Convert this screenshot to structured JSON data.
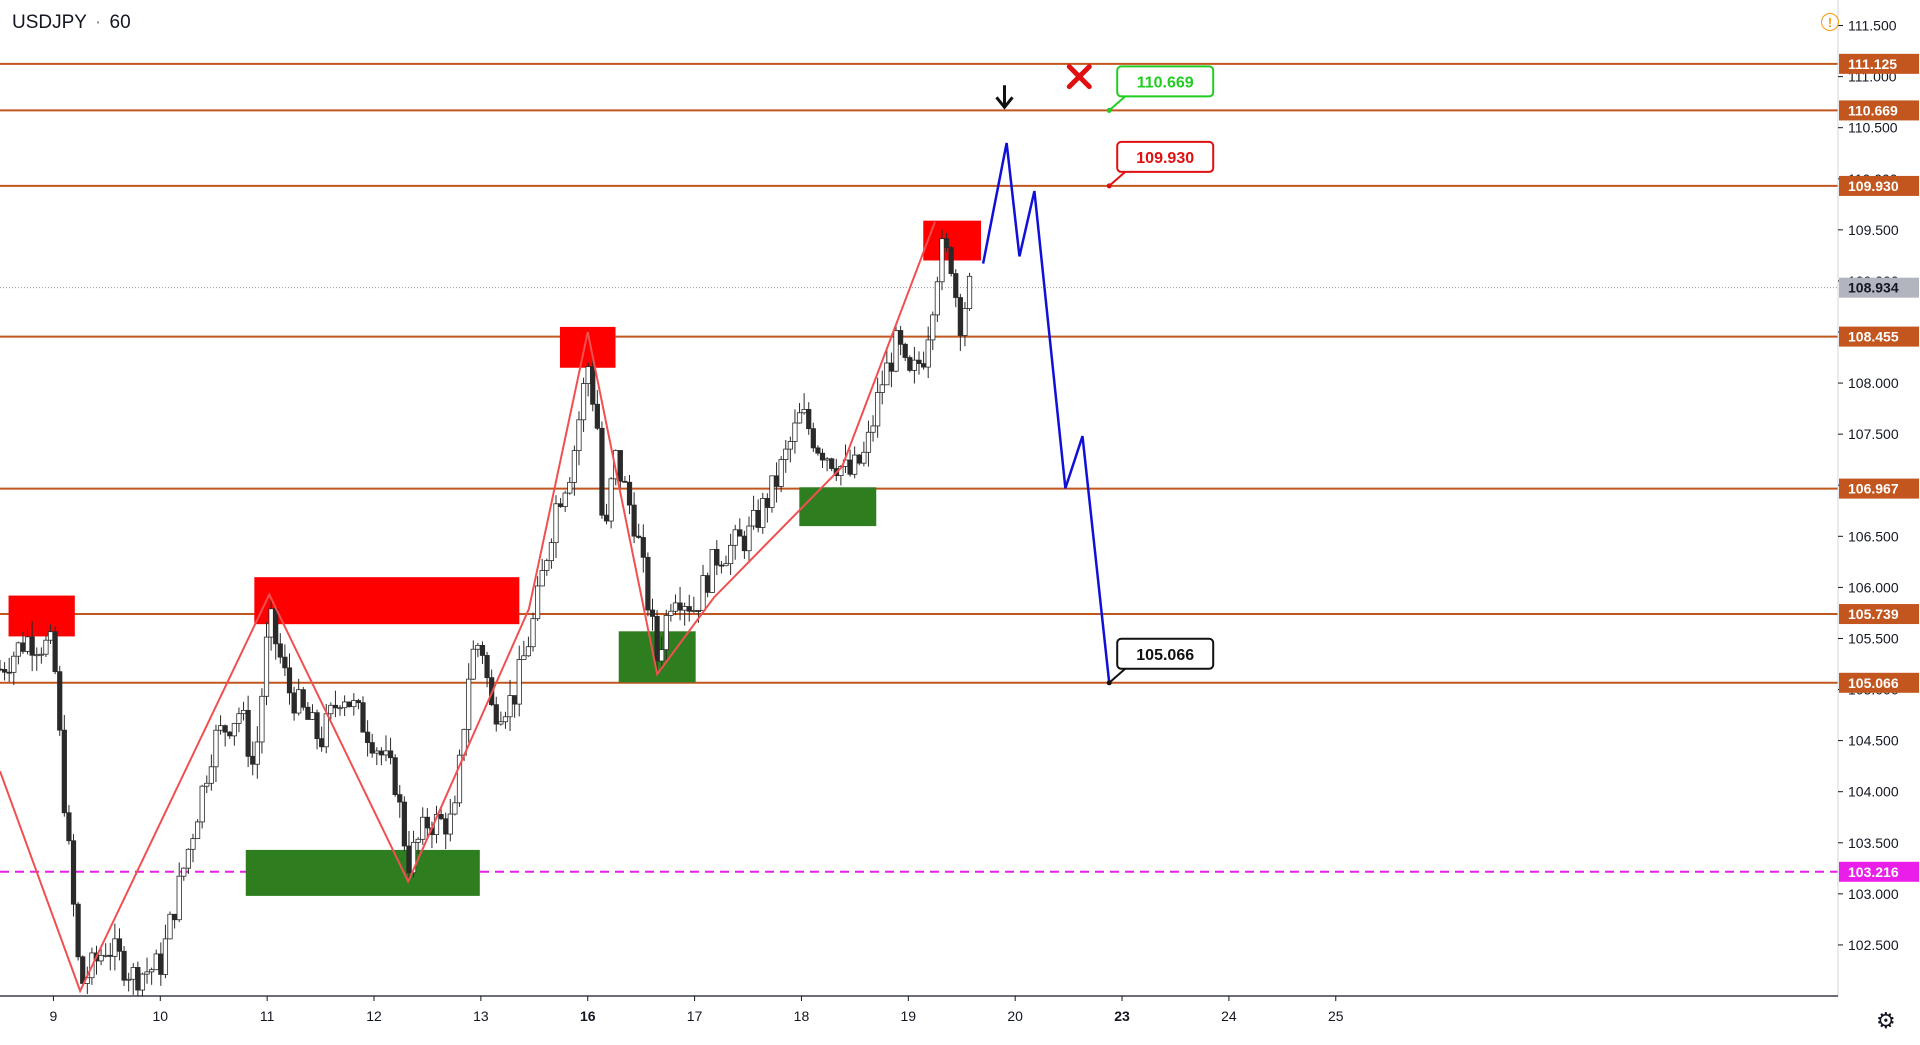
{
  "header": {
    "symbol": "USDJPY",
    "separator": "·",
    "interval": "60"
  },
  "icons": {
    "warning": "warning-icon",
    "settings": "gear-icon"
  },
  "colors": {
    "level_line": "#c2561e",
    "dashed_level": "#e91ee9",
    "up_candle": "#ffffff",
    "down_candle": "#2a2a2a",
    "wick": "#2a2a2a",
    "zigzag": "#f05050",
    "projection": "#1010d8",
    "resistance_zone": "#ff0000",
    "support_zone": "#2e7d1f",
    "label_green": "#22cc22",
    "label_red": "#e01010",
    "label_black": "#111111",
    "x_mark": "#e01010",
    "current_price_tag": "#b2b5be"
  },
  "chart_data": {
    "type": "candlestick",
    "symbol": "USDJPY",
    "interval": "60",
    "ylim": [
      102.0,
      111.75
    ],
    "y_ticks": [
      "102.500",
      "103.000",
      "103.500",
      "104.000",
      "104.500",
      "105.000",
      "105.500",
      "106.000",
      "106.500",
      "107.000",
      "107.500",
      "108.000",
      "108.500",
      "109.000",
      "109.500",
      "110.000",
      "110.500",
      "111.000",
      "111.500"
    ],
    "x_range": [
      8.5,
      25.7
    ],
    "x_ticks": [
      {
        "label": "9",
        "x": 9.0
      },
      {
        "label": "10",
        "x": 10.0
      },
      {
        "label": "11",
        "x": 11.0
      },
      {
        "label": "12",
        "x": 12.0
      },
      {
        "label": "13",
        "x": 13.0
      },
      {
        "label": "16",
        "x": 14.0
      },
      {
        "label": "17",
        "x": 15.0
      },
      {
        "label": "18",
        "x": 16.0
      },
      {
        "label": "19",
        "x": 17.0
      },
      {
        "label": "20",
        "x": 18.0
      },
      {
        "label": "23",
        "x": 19.0
      },
      {
        "label": "24",
        "x": 20.0
      },
      {
        "label": "25",
        "x": 21.0
      }
    ],
    "levels": [
      {
        "price": 111.125,
        "label": "111.125",
        "style": "solid"
      },
      {
        "price": 110.669,
        "label": "110.669",
        "style": "solid"
      },
      {
        "price": 109.93,
        "label": "109.930",
        "style": "solid"
      },
      {
        "price": 108.455,
        "label": "108.455",
        "style": "solid"
      },
      {
        "price": 106.967,
        "label": "106.967",
        "style": "solid"
      },
      {
        "price": 105.739,
        "label": "105.739",
        "style": "solid"
      },
      {
        "price": 105.066,
        "label": "105.066",
        "style": "solid"
      },
      {
        "price": 103.216,
        "label": "103.216",
        "style": "dashed"
      }
    ],
    "current_price": {
      "price": 108.934,
      "label": "108.934"
    },
    "zones": [
      {
        "kind": "resistance",
        "x0": 8.58,
        "x1": 9.2,
        "y0": 105.52,
        "y1": 105.92
      },
      {
        "kind": "resistance",
        "x0": 10.88,
        "x1": 13.36,
        "y0": 105.64,
        "y1": 106.1
      },
      {
        "kind": "resistance",
        "x0": 13.74,
        "x1": 14.26,
        "y0": 108.15,
        "y1": 108.55
      },
      {
        "kind": "resistance",
        "x0": 17.14,
        "x1": 17.68,
        "y0": 109.2,
        "y1": 109.59
      },
      {
        "kind": "support",
        "x0": 10.8,
        "x1": 12.99,
        "y0": 102.98,
        "y1": 103.43
      },
      {
        "kind": "support",
        "x0": 14.29,
        "x1": 15.01,
        "y0": 105.07,
        "y1": 105.57
      },
      {
        "kind": "support",
        "x0": 15.98,
        "x1": 16.7,
        "y0": 106.6,
        "y1": 106.98
      }
    ],
    "zigzag": [
      {
        "x": 8.5,
        "y": 104.2
      },
      {
        "x": 9.25,
        "y": 102.05
      },
      {
        "x": 11.02,
        "y": 105.93
      },
      {
        "x": 12.32,
        "y": 103.12
      },
      {
        "x": 13.45,
        "y": 105.79
      },
      {
        "x": 14.0,
        "y": 108.5
      },
      {
        "x": 14.65,
        "y": 105.15
      },
      {
        "x": 15.18,
        "y": 105.9
      },
      {
        "x": 16.38,
        "y": 107.18
      },
      {
        "x": 17.25,
        "y": 109.58
      }
    ],
    "projection": [
      {
        "x": 17.7,
        "y": 109.17
      },
      {
        "x": 17.92,
        "y": 110.35
      },
      {
        "x": 18.04,
        "y": 109.24
      },
      {
        "x": 18.18,
        "y": 109.88
      },
      {
        "x": 18.47,
        "y": 106.97
      },
      {
        "x": 18.63,
        "y": 107.48
      },
      {
        "x": 18.88,
        "y": 105.066
      }
    ],
    "callouts": [
      {
        "text": "110.669",
        "price": 110.669,
        "x": 18.88,
        "style": "green"
      },
      {
        "text": "109.930",
        "price": 109.93,
        "x": 18.88,
        "style": "red"
      },
      {
        "text": "105.066",
        "price": 105.066,
        "x": 18.88,
        "style": "black"
      }
    ],
    "markers": [
      {
        "kind": "arrow-down",
        "x": 17.9,
        "y": 110.7
      },
      {
        "kind": "x-mark",
        "x": 18.6,
        "y": 111.0
      }
    ],
    "anchors": [
      {
        "x": 8.5,
        "y": 105.2
      },
      {
        "x": 8.75,
        "y": 105.5
      },
      {
        "x": 9.0,
        "y": 105.4
      },
      {
        "x": 9.08,
        "y": 104.2
      },
      {
        "x": 9.25,
        "y": 102.1
      },
      {
        "x": 9.5,
        "y": 102.5
      },
      {
        "x": 9.75,
        "y": 102.2
      },
      {
        "x": 10.0,
        "y": 102.3
      },
      {
        "x": 10.3,
        "y": 103.6
      },
      {
        "x": 10.5,
        "y": 104.5
      },
      {
        "x": 10.75,
        "y": 104.8
      },
      {
        "x": 10.88,
        "y": 104.2
      },
      {
        "x": 11.02,
        "y": 105.7
      },
      {
        "x": 11.2,
        "y": 105.0
      },
      {
        "x": 11.5,
        "y": 104.5
      },
      {
        "x": 11.7,
        "y": 105.0
      },
      {
        "x": 12.0,
        "y": 104.5
      },
      {
        "x": 12.2,
        "y": 104.1
      },
      {
        "x": 12.32,
        "y": 103.3
      },
      {
        "x": 12.5,
        "y": 103.7
      },
      {
        "x": 12.75,
        "y": 103.7
      },
      {
        "x": 12.9,
        "y": 105.3
      },
      {
        "x": 13.0,
        "y": 105.5
      },
      {
        "x": 13.1,
        "y": 104.8
      },
      {
        "x": 13.3,
        "y": 104.9
      },
      {
        "x": 13.5,
        "y": 105.7
      },
      {
        "x": 13.7,
        "y": 106.8
      },
      {
        "x": 13.85,
        "y": 107.2
      },
      {
        "x": 14.0,
        "y": 108.2
      },
      {
        "x": 14.1,
        "y": 107.5
      },
      {
        "x": 14.15,
        "y": 106.3
      },
      {
        "x": 14.25,
        "y": 107.3
      },
      {
        "x": 14.45,
        "y": 106.6
      },
      {
        "x": 14.65,
        "y": 105.3
      },
      {
        "x": 14.8,
        "y": 106.0
      },
      {
        "x": 15.0,
        "y": 105.8
      },
      {
        "x": 15.2,
        "y": 106.3
      },
      {
        "x": 15.5,
        "y": 106.5
      },
      {
        "x": 15.75,
        "y": 107.0
      },
      {
        "x": 16.0,
        "y": 107.7
      },
      {
        "x": 16.15,
        "y": 107.4
      },
      {
        "x": 16.45,
        "y": 107.1
      },
      {
        "x": 16.6,
        "y": 107.3
      },
      {
        "x": 16.75,
        "y": 108.0
      },
      {
        "x": 16.9,
        "y": 108.4
      },
      {
        "x": 17.0,
        "y": 108.0
      },
      {
        "x": 17.15,
        "y": 108.3
      },
      {
        "x": 17.3,
        "y": 109.3
      },
      {
        "x": 17.4,
        "y": 109.2
      },
      {
        "x": 17.48,
        "y": 108.6
      },
      {
        "x": 17.58,
        "y": 108.95
      }
    ]
  }
}
